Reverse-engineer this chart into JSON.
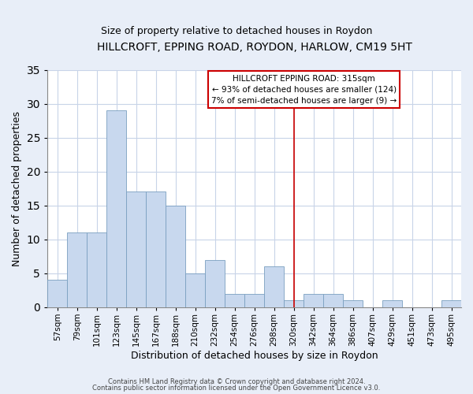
{
  "title": "HILLCROFT, EPPING ROAD, ROYDON, HARLOW, CM19 5HT",
  "subtitle": "Size of property relative to detached houses in Roydon",
  "xlabel": "Distribution of detached houses by size in Roydon",
  "ylabel": "Number of detached properties",
  "categories": [
    "57sqm",
    "79sqm",
    "101sqm",
    "123sqm",
    "145sqm",
    "167sqm",
    "188sqm",
    "210sqm",
    "232sqm",
    "254sqm",
    "276sqm",
    "298sqm",
    "320sqm",
    "342sqm",
    "364sqm",
    "386sqm",
    "407sqm",
    "429sqm",
    "451sqm",
    "473sqm",
    "495sqm"
  ],
  "values": [
    4,
    11,
    11,
    29,
    17,
    17,
    15,
    5,
    7,
    2,
    2,
    6,
    1,
    2,
    2,
    1,
    0,
    1,
    0,
    0,
    1
  ],
  "bar_color": "#c8d8ee",
  "bar_edge_color": "#7a9fc0",
  "vline_x": 12,
  "vline_color": "#cc0000",
  "annotation_title": "HILLCROFT EPPING ROAD: 315sqm",
  "annotation_line1": "← 93% of detached houses are smaller (124)",
  "annotation_line2": "7% of semi-detached houses are larger (9) →",
  "annotation_box_facecolor": "#ffffff",
  "annotation_box_edgecolor": "#cc0000",
  "ylim": [
    0,
    35
  ],
  "yticks": [
    0,
    5,
    10,
    15,
    20,
    25,
    30,
    35
  ],
  "footer1": "Contains HM Land Registry data © Crown copyright and database right 2024.",
  "footer2": "Contains public sector information licensed under the Open Government Licence v3.0.",
  "plot_bg_color": "#ffffff",
  "fig_bg_color": "#e8eef8",
  "grid_color": "#c8d4e8",
  "title_fontsize": 10,
  "subtitle_fontsize": 9
}
